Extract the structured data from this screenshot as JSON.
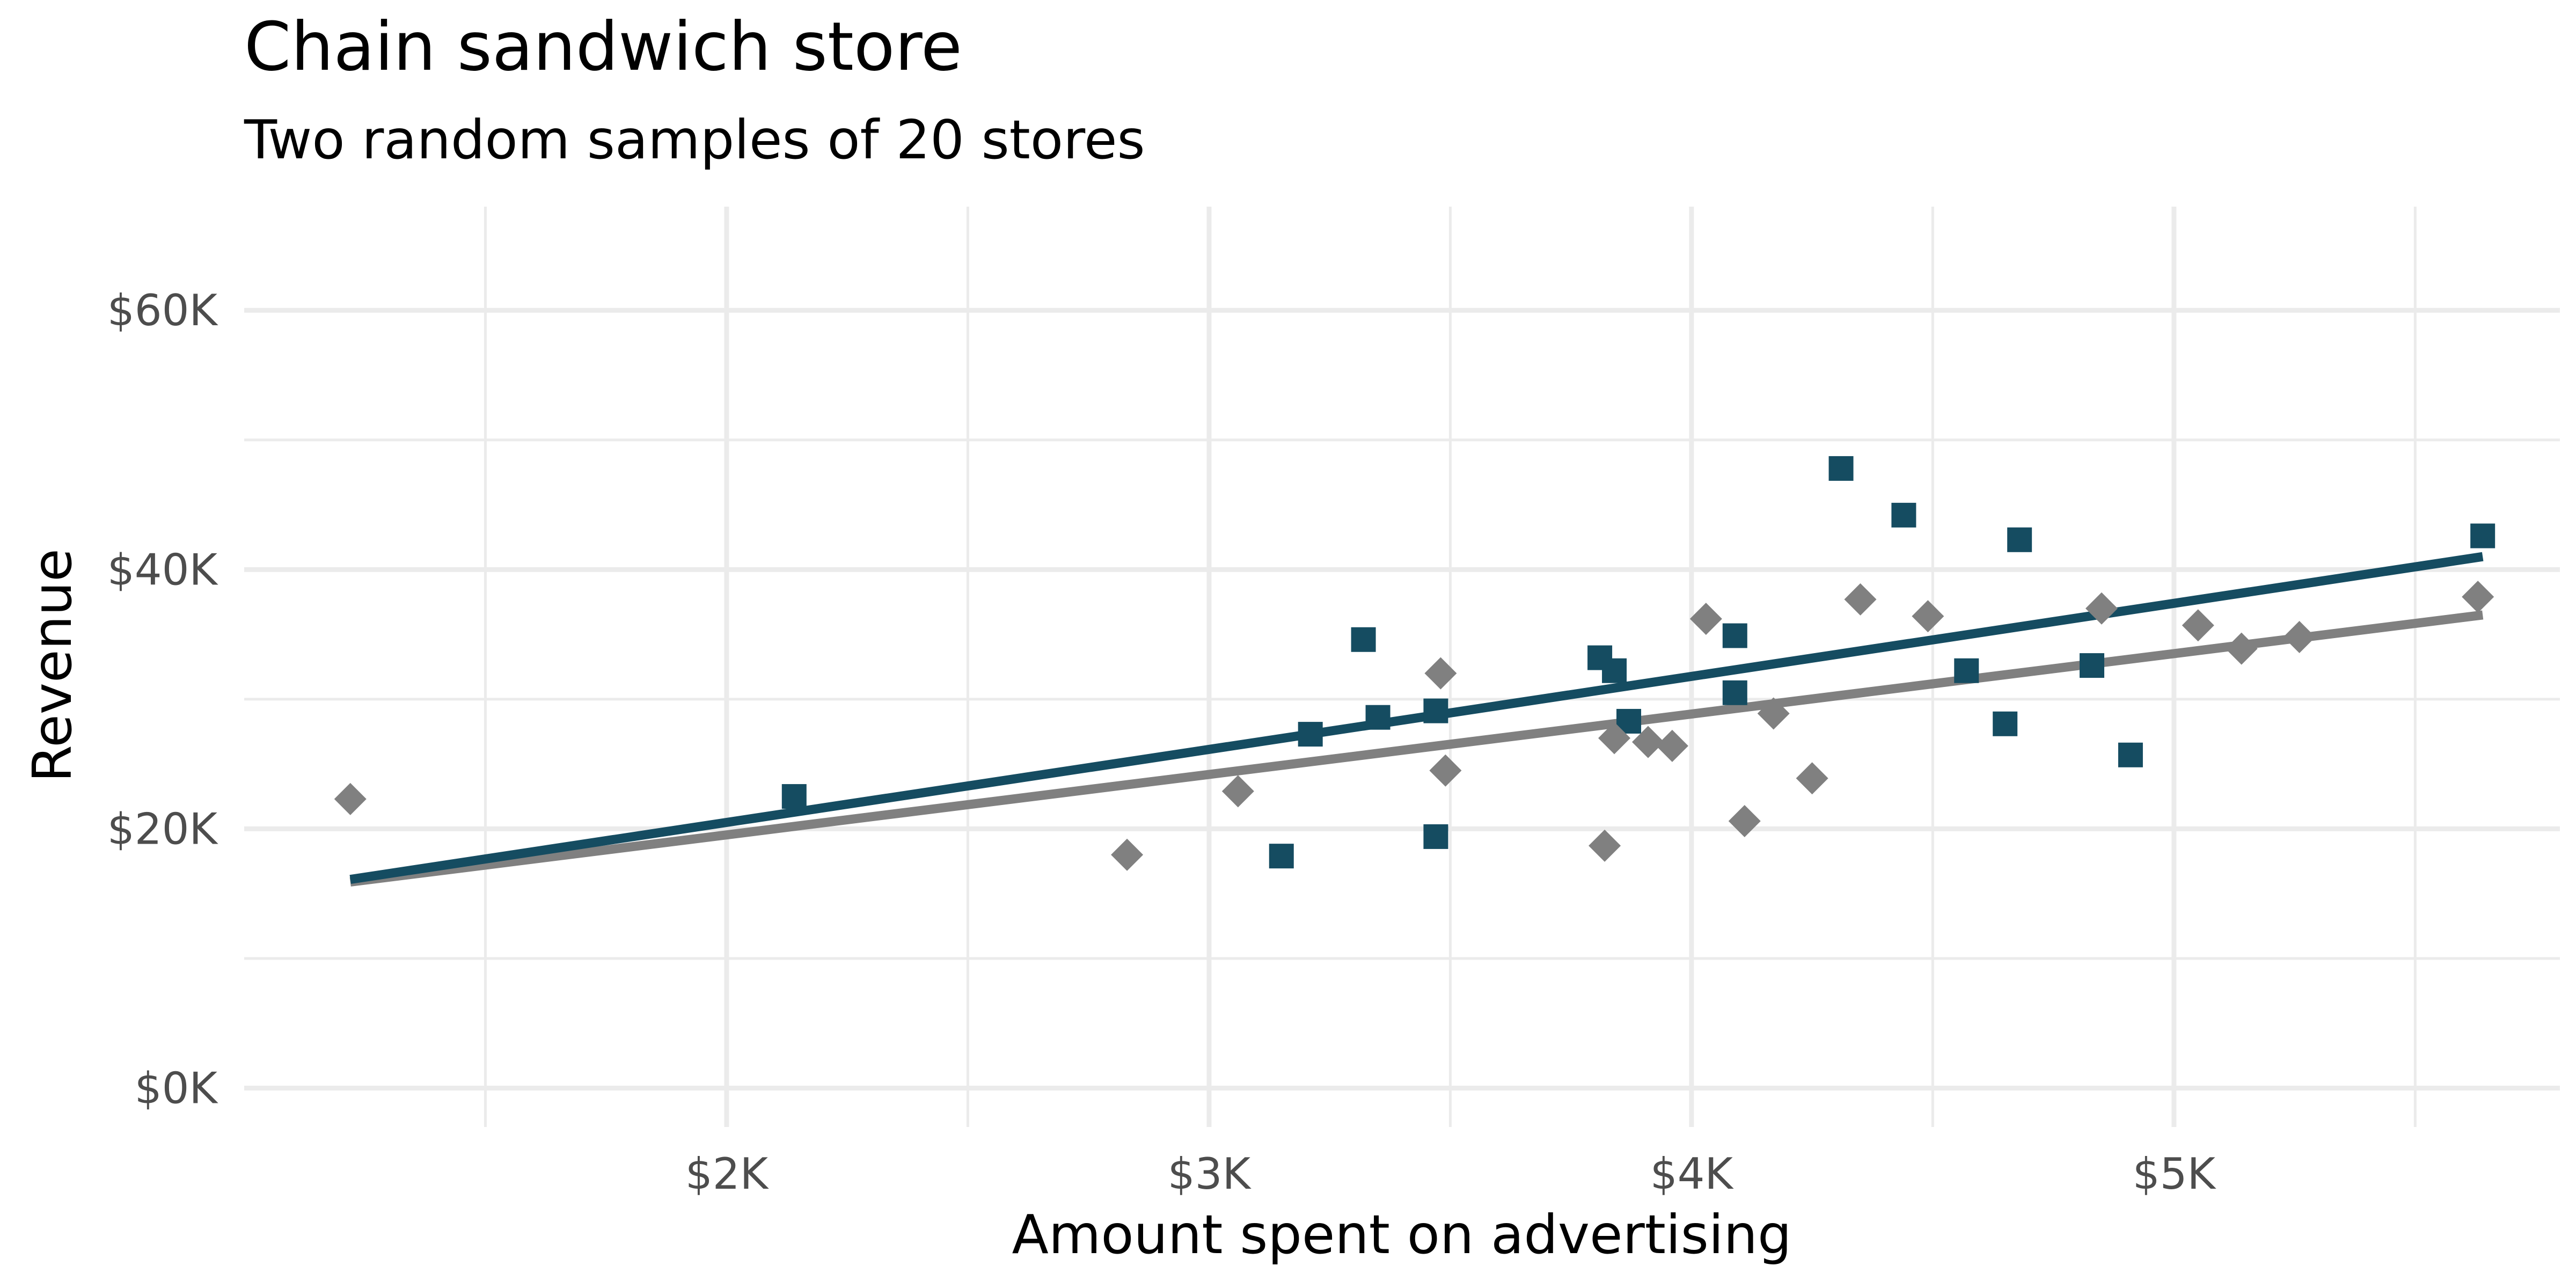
{
  "chart_data": {
    "type": "scatter",
    "title": "Chain sandwich store",
    "subtitle": "Two random samples of 20 stores",
    "xlabel": "Amount spent on advertising",
    "ylabel": "Revenue",
    "xlim": [
      1000,
      5800
    ],
    "ylim": [
      -3000,
      68000
    ],
    "x_ticks": [
      2000,
      3000,
      4000,
      5000
    ],
    "x_tick_labels": [
      "$2K",
      "$3K",
      "$4K",
      "$5K"
    ],
    "x_minor_ticks": [
      1500,
      2500,
      3500,
      4500,
      5500
    ],
    "y_ticks": [
      0,
      20000,
      40000,
      60000
    ],
    "y_tick_labels": [
      "$0K",
      "$20K",
      "$40K",
      "$60K"
    ],
    "y_minor_ticks": [
      10000,
      30000,
      50000
    ],
    "grid": true,
    "legend": "none",
    "series": [
      {
        "marker": "square",
        "color": "#154c61",
        "points": [
          {
            "x": 2140,
            "y": 22500
          },
          {
            "x": 3150,
            "y": 17900
          },
          {
            "x": 3210,
            "y": 27300
          },
          {
            "x": 3320,
            "y": 34600
          },
          {
            "x": 3350,
            "y": 28600
          },
          {
            "x": 3470,
            "y": 29100
          },
          {
            "x": 3470,
            "y": 19400
          },
          {
            "x": 3810,
            "y": 33200
          },
          {
            "x": 3840,
            "y": 32200
          },
          {
            "x": 3870,
            "y": 28300
          },
          {
            "x": 4090,
            "y": 34900
          },
          {
            "x": 4090,
            "y": 30500
          },
          {
            "x": 4310,
            "y": 47800
          },
          {
            "x": 4440,
            "y": 44200
          },
          {
            "x": 4570,
            "y": 32200
          },
          {
            "x": 4650,
            "y": 28100
          },
          {
            "x": 4680,
            "y": 42300
          },
          {
            "x": 4830,
            "y": 32600
          },
          {
            "x": 4910,
            "y": 25700
          },
          {
            "x": 5640,
            "y": 42600
          }
        ],
        "trend": {
          "x": [
            1220,
            5640
          ],
          "y": [
            16100,
            41000
          ]
        }
      },
      {
        "marker": "diamond",
        "color": "#808080",
        "points": [
          {
            "x": 1220,
            "y": 22300
          },
          {
            "x": 2830,
            "y": 18000
          },
          {
            "x": 3060,
            "y": 22900
          },
          {
            "x": 3480,
            "y": 32000
          },
          {
            "x": 3490,
            "y": 24500
          },
          {
            "x": 3820,
            "y": 18700
          },
          {
            "x": 3840,
            "y": 27000
          },
          {
            "x": 3910,
            "y": 26700
          },
          {
            "x": 3960,
            "y": 26400
          },
          {
            "x": 4030,
            "y": 36200
          },
          {
            "x": 4110,
            "y": 20600
          },
          {
            "x": 4170,
            "y": 28900
          },
          {
            "x": 4250,
            "y": 23900
          },
          {
            "x": 4350,
            "y": 37700
          },
          {
            "x": 4490,
            "y": 36400
          },
          {
            "x": 4850,
            "y": 37000
          },
          {
            "x": 5050,
            "y": 35700
          },
          {
            "x": 5140,
            "y": 33900
          },
          {
            "x": 5260,
            "y": 34800
          },
          {
            "x": 5630,
            "y": 37900
          }
        ],
        "trend": {
          "x": [
            1220,
            5640
          ],
          "y": [
            15900,
            36500
          ]
        }
      }
    ]
  }
}
